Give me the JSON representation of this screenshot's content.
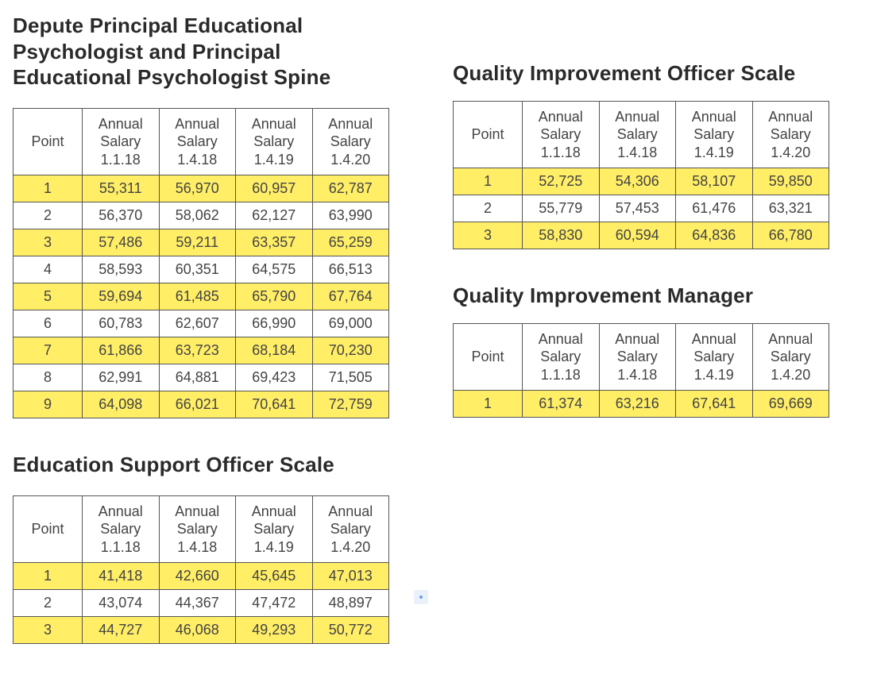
{
  "colors": {
    "highlight_row_bg": "#ffee66",
    "border_color": "#555555",
    "text_color": "#3a3a3a",
    "background": "#ffffff"
  },
  "typography": {
    "title_fontsize_pt": 20,
    "cell_fontsize_pt": 13
  },
  "columns": {
    "point": "Point",
    "c1": "Annual Salary 1.1.18",
    "c2": "Annual Salary 1.4.18",
    "c3": "Annual Salary 1.4.19",
    "c4": "Annual Salary 1.4.20"
  },
  "sections": {
    "depute": {
      "title": "Depute Principal Educational Psychologist and Principal Educational Psychologist Spine",
      "rows": [
        {
          "pt": "1",
          "v": [
            "55,311",
            "56,970",
            "60,957",
            "62,787"
          ],
          "hl": true
        },
        {
          "pt": "2",
          "v": [
            "56,370",
            "58,062",
            "62,127",
            "63,990"
          ],
          "hl": false
        },
        {
          "pt": "3",
          "v": [
            "57,486",
            "59,211",
            "63,357",
            "65,259"
          ],
          "hl": true
        },
        {
          "pt": "4",
          "v": [
            "58,593",
            "60,351",
            "64,575",
            "66,513"
          ],
          "hl": false
        },
        {
          "pt": "5",
          "v": [
            "59,694",
            "61,485",
            "65,790",
            "67,764"
          ],
          "hl": true
        },
        {
          "pt": "6",
          "v": [
            "60,783",
            "62,607",
            "66,990",
            "69,000"
          ],
          "hl": false
        },
        {
          "pt": "7",
          "v": [
            "61,866",
            "63,723",
            "68,184",
            "70,230"
          ],
          "hl": true
        },
        {
          "pt": "8",
          "v": [
            "62,991",
            "64,881",
            "69,423",
            "71,505"
          ],
          "hl": false
        },
        {
          "pt": "9",
          "v": [
            "64,098",
            "66,021",
            "70,641",
            "72,759"
          ],
          "hl": true
        }
      ]
    },
    "eso": {
      "title": "Education Support Officer Scale",
      "rows": [
        {
          "pt": "1",
          "v": [
            "41,418",
            "42,660",
            "45,645",
            "47,013"
          ],
          "hl": true
        },
        {
          "pt": "2",
          "v": [
            "43,074",
            "44,367",
            "47,472",
            "48,897"
          ],
          "hl": false
        },
        {
          "pt": "3",
          "v": [
            "44,727",
            "46,068",
            "49,293",
            "50,772"
          ],
          "hl": true
        }
      ]
    },
    "qio": {
      "title": "Quality Improvement Officer Scale",
      "rows": [
        {
          "pt": "1",
          "v": [
            "52,725",
            "54,306",
            "58,107",
            "59,850"
          ],
          "hl": true
        },
        {
          "pt": "2",
          "v": [
            "55,779",
            "57,453",
            "61,476",
            "63,321"
          ],
          "hl": false
        },
        {
          "pt": "3",
          "v": [
            "58,830",
            "60,594",
            "64,836",
            "66,780"
          ],
          "hl": true
        }
      ]
    },
    "qim": {
      "title": "Quality Improvement Manager",
      "rows": [
        {
          "pt": "1",
          "v": [
            "61,374",
            "63,216",
            "67,641",
            "69,669"
          ],
          "hl": true
        }
      ]
    }
  }
}
